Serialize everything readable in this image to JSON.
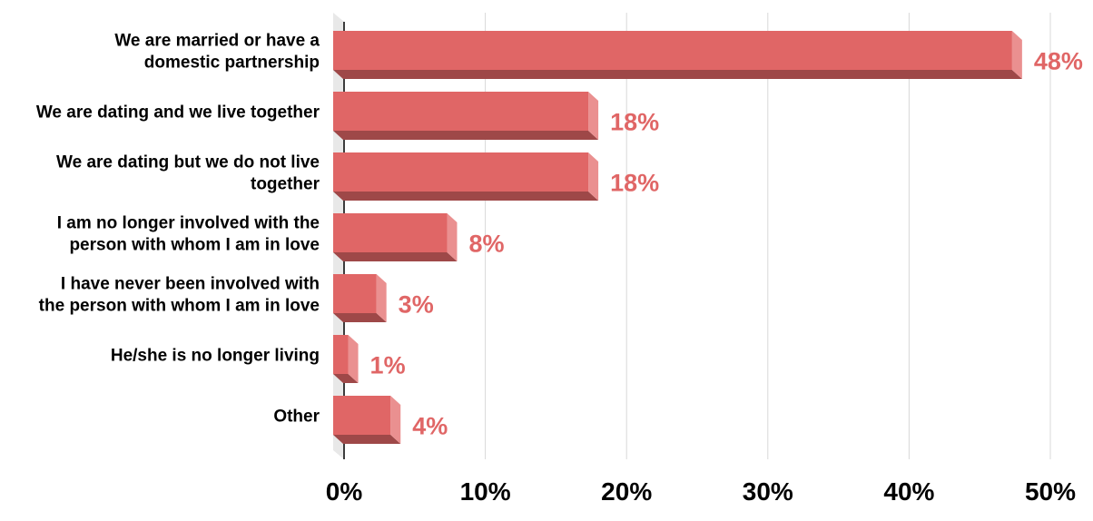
{
  "chart_data": {
    "type": "bar",
    "orientation": "horizontal",
    "categories": [
      [
        "We are married or have a",
        "domestic partnership"
      ],
      [
        "We are dating and we live together"
      ],
      [
        "We are dating but we do not live",
        "together"
      ],
      [
        "I am no longer involved with the",
        "person with whom I am in love"
      ],
      [
        "I have never been involved with",
        "the person with whom I am in love"
      ],
      [
        "He/she is no longer living"
      ],
      [
        "Other"
      ]
    ],
    "values": [
      48,
      18,
      18,
      8,
      3,
      1,
      4
    ],
    "value_labels": [
      "48%",
      "18%",
      "18%",
      "8%",
      "3%",
      "1%",
      "4%"
    ],
    "x_ticks": [
      "0%",
      "10%",
      "20%",
      "30%",
      "40%",
      "50%"
    ],
    "xlim": [
      0,
      50
    ],
    "title": "",
    "xlabel": "",
    "ylabel": "",
    "grid": true,
    "legend": "none",
    "colors": {
      "bar_front": "#e06666",
      "bar_side": "#ea9090",
      "bar_bottom": "#9e4848",
      "label": "#e06666",
      "grid": "#d9d9d9",
      "floor": "#e8e8e8"
    }
  }
}
